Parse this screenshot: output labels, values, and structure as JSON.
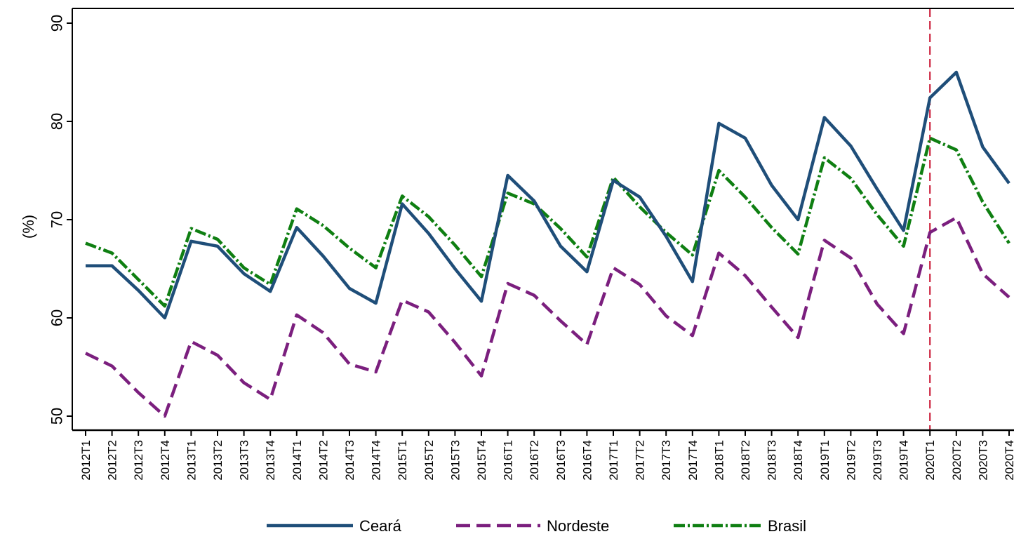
{
  "chart_data": {
    "type": "line",
    "title": "",
    "xlabel": "",
    "ylabel": "(%)",
    "ylim": [
      50,
      90
    ],
    "yticks": [
      50,
      60,
      70,
      80,
      90
    ],
    "grid": false,
    "legend_position": "bottom",
    "categories": [
      "2012T1",
      "2012T2",
      "2012T3",
      "2012T4",
      "2013T1",
      "2013T2",
      "2013T3",
      "2013T4",
      "2014T1",
      "2014T2",
      "2014T3",
      "2014T4",
      "2015T1",
      "2015T2",
      "2015T3",
      "2015T4",
      "2016T1",
      "2016T2",
      "2016T3",
      "2016T4",
      "2017T1",
      "2017T2",
      "2017T3",
      "2017T4",
      "2018T1",
      "2018T2",
      "2018T3",
      "2018T4",
      "2019T1",
      "2019T2",
      "2019T3",
      "2019T4",
      "2020T1",
      "2020T2",
      "2020T3",
      "2020T4"
    ],
    "vertical_marker": {
      "category": "2020T1",
      "color": "#C8102E",
      "style": "dashed"
    },
    "series": [
      {
        "name": "Ceará",
        "color": "#1F4E79",
        "style": "solid",
        "values": [
          65.3,
          65.3,
          62.8,
          60.0,
          67.8,
          67.3,
          64.5,
          62.7,
          69.2,
          66.3,
          63.0,
          61.5,
          71.6,
          68.6,
          65.0,
          61.7,
          74.5,
          71.9,
          67.3,
          64.7,
          74.0,
          72.3,
          68.3,
          63.7,
          79.8,
          78.3,
          73.5,
          70.0,
          80.4,
          77.5,
          73.1,
          68.9,
          82.4,
          85.0,
          77.4,
          73.7
        ]
      },
      {
        "name": "Nordeste",
        "color": "#7B1F7E",
        "style": "dashed",
        "values": [
          56.4,
          55.1,
          52.4,
          50.0,
          57.6,
          56.2,
          53.4,
          51.7,
          60.3,
          58.5,
          55.3,
          54.5,
          61.8,
          60.6,
          57.5,
          54.1,
          63.5,
          62.3,
          59.7,
          57.3,
          65.1,
          63.4,
          60.2,
          58.2,
          66.6,
          64.3,
          61.1,
          58.0,
          67.9,
          66.1,
          61.4,
          58.4,
          68.7,
          70.2,
          64.5,
          62.1
        ]
      },
      {
        "name": "Brasil",
        "color": "#0F7F12",
        "style": "dashdot",
        "values": [
          67.6,
          66.6,
          63.9,
          61.2,
          69.1,
          68.0,
          65.1,
          63.4,
          71.1,
          69.4,
          67.1,
          65.1,
          72.4,
          70.3,
          67.4,
          64.2,
          72.7,
          71.6,
          69.1,
          66.2,
          74.3,
          71.3,
          68.7,
          66.4,
          75.0,
          72.3,
          69.2,
          66.5,
          76.3,
          74.2,
          70.5,
          67.3,
          78.3,
          77.1,
          71.8,
          67.6
        ]
      }
    ]
  }
}
